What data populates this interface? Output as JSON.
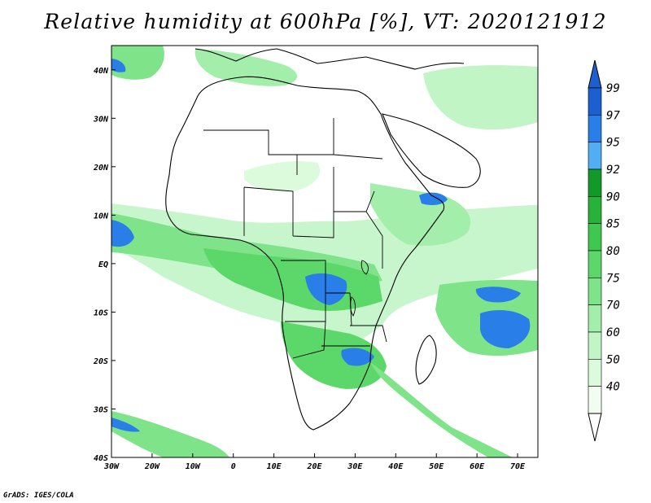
{
  "title": "Relative humidity at 600hPa [%], VT: 2020121912",
  "credit": "GrADS: IGES/COLA",
  "map": {
    "lon_range": [
      -30,
      75
    ],
    "lat_range": [
      -40,
      45
    ],
    "x_ticks": [
      "30W",
      "20W",
      "10W",
      "0",
      "10E",
      "20E",
      "30E",
      "40E",
      "50E",
      "60E",
      "70E"
    ],
    "y_ticks": [
      "40N",
      "30N",
      "20N",
      "10N",
      "EQ",
      "10S",
      "20S",
      "30S",
      "40S"
    ]
  },
  "colorbar": {
    "levels": [
      "99",
      "97",
      "95",
      "92",
      "90",
      "85",
      "80",
      "75",
      "70",
      "60",
      "50",
      "40"
    ],
    "colors": [
      "#1c5fd0",
      "#2a7ee8",
      "#52aef2",
      "#119a28",
      "#28b23a",
      "#3fc84f",
      "#5cd769",
      "#7fe489",
      "#a3eeaa",
      "#c2f5c6",
      "#dcfadc",
      "#f0fef0"
    ]
  },
  "colors": {
    "humid_light": "#c2f5c6",
    "humid_mid": "#5cd769",
    "humid_dark": "#119a28",
    "saturated": "#2a7ee8"
  }
}
